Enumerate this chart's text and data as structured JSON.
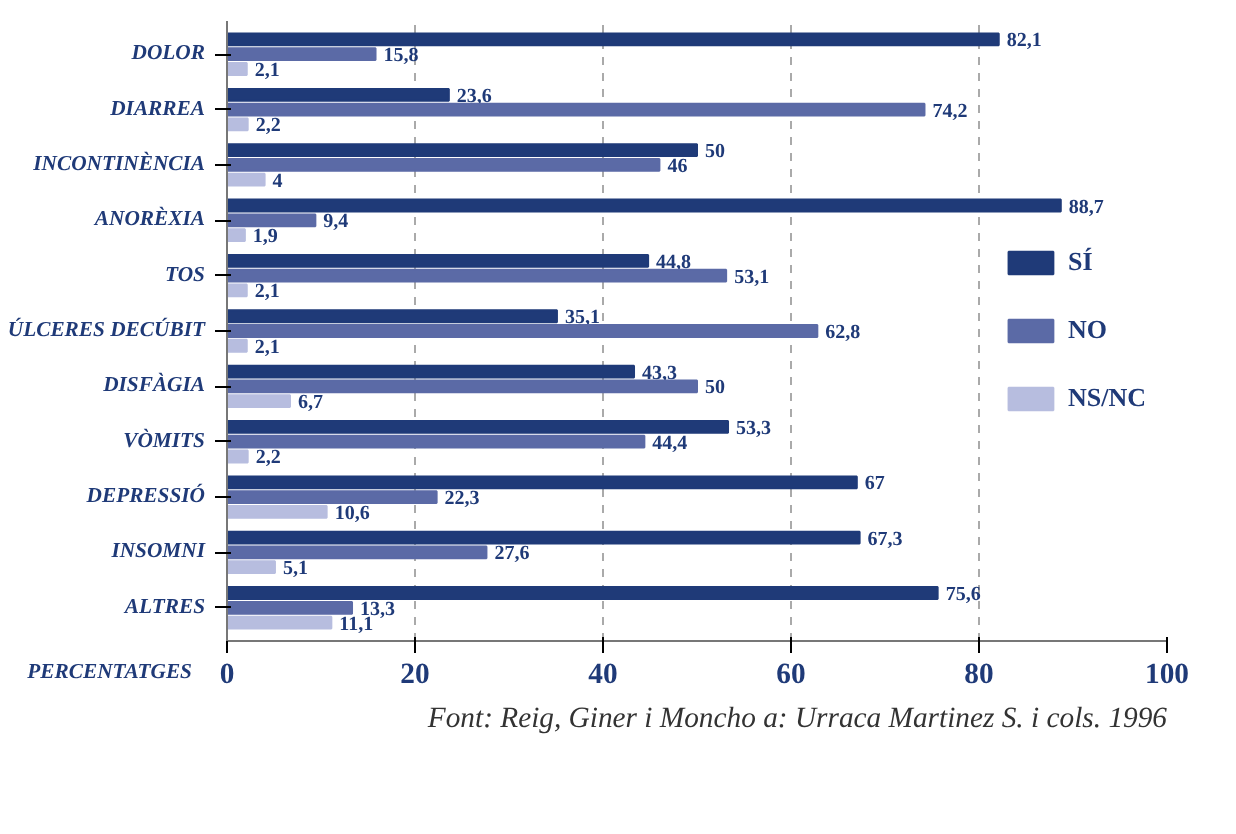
{
  "chart_data": {
    "type": "bar",
    "orientation": "horizontal",
    "xlabel": "PERCENTATGES",
    "categories": [
      "DOLOR",
      "DIARREA",
      "INCONTINÈNCIA",
      "ANORÈXIA",
      "TOS",
      "ÚLCERES DECÚBIT",
      "DISFÀGIA",
      "VÒMITS",
      "DEPRESSIÓ",
      "INSOMNI",
      "ALTRES"
    ],
    "series": [
      {
        "name": "SÍ",
        "color": "#1f3a78",
        "values": [
          82.1,
          23.6,
          50,
          88.7,
          44.8,
          35.1,
          43.3,
          53.3,
          67,
          67.3,
          75.6
        ],
        "value_labels": [
          "82,1",
          "23,6",
          "50",
          "88,7",
          "44,8",
          "35,1",
          "43,3",
          "53,3",
          "67",
          "67,3",
          "75,6"
        ]
      },
      {
        "name": "NO",
        "color": "#5b6aa6",
        "values": [
          15.8,
          74.2,
          46,
          9.4,
          53.1,
          62.8,
          50,
          44.4,
          22.3,
          27.6,
          13.3
        ],
        "value_labels": [
          "15,8",
          "74,2",
          "46",
          "9,4",
          "53,1",
          "62,8",
          "50",
          "44,4",
          "22,3",
          "27,6",
          "13,3"
        ]
      },
      {
        "name": "NS/NC",
        "color": "#b7bddf",
        "values": [
          2.1,
          2.2,
          4,
          1.9,
          2.1,
          2.1,
          6.7,
          2.2,
          10.6,
          5.1,
          11.1
        ],
        "value_labels": [
          "2,1",
          "2,2",
          "4",
          "1,9",
          "2,1",
          "2,1",
          "6,7",
          "2,2",
          "10,6",
          "5,1",
          "11,1"
        ]
      }
    ],
    "xlim": [
      0,
      100
    ],
    "xticks": [
      0,
      20,
      40,
      60,
      80,
      100
    ],
    "grid": "x",
    "legend": "right",
    "annotations": [
      "Font: Reig, Giner i Moncho a: Urraca Martinez S. i cols. 1996"
    ]
  }
}
